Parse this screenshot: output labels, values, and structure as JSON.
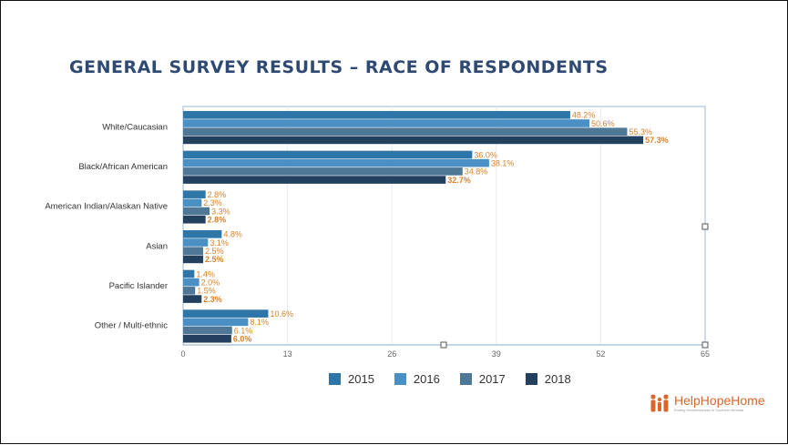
{
  "slide": {
    "title": "GENERAL SURVEY RESULTS – RACE OF RESPONDENTS"
  },
  "chart_data": {
    "type": "bar",
    "orientation": "horizontal",
    "categories": [
      "White/Caucasian",
      "Black/African American",
      "American Indian/Alaskan Native",
      "Asian",
      "Pacific Islander",
      "Other / Multi-ethnic"
    ],
    "series": [
      {
        "name": "2015",
        "color": "#2e75a8",
        "values": [
          48.2,
          36.0,
          2.8,
          4.8,
          1.4,
          10.6
        ],
        "labels": [
          "48.2%",
          "36.0%",
          "2.8%",
          "4.8%",
          "1.4%",
          "10.6%"
        ]
      },
      {
        "name": "2016",
        "color": "#4a90c4",
        "values": [
          50.6,
          38.1,
          2.3,
          3.1,
          2.0,
          8.1
        ],
        "labels": [
          "50.6%",
          "38.1%",
          "2.3%",
          "3.1%",
          "2.0%",
          "8.1%"
        ]
      },
      {
        "name": "2017",
        "color": "#4f7796",
        "values": [
          55.3,
          34.8,
          3.3,
          2.5,
          1.5,
          6.1
        ],
        "labels": [
          "55.3%",
          "34.8%",
          "3.3%",
          "2.5%",
          "1.5%",
          "6.1%"
        ]
      },
      {
        "name": "2018",
        "color": "#23405f",
        "values": [
          57.3,
          32.7,
          2.8,
          2.5,
          2.3,
          6.0
        ],
        "labels": [
          "57.3%",
          "32.7%",
          "2.8%",
          "2.5%",
          "2.3%",
          "6.0%"
        ]
      }
    ],
    "xlim": [
      0,
      65
    ],
    "xticks": [
      0,
      13,
      26,
      39,
      52,
      65
    ],
    "grid": true,
    "legend_position": "bottom",
    "label_color": "#d9822b",
    "title": "",
    "xlabel": "",
    "ylabel": ""
  },
  "logo": {
    "name": "HelpHopeHome",
    "tagline": "Ending Homelessness in Southern Nevada"
  }
}
